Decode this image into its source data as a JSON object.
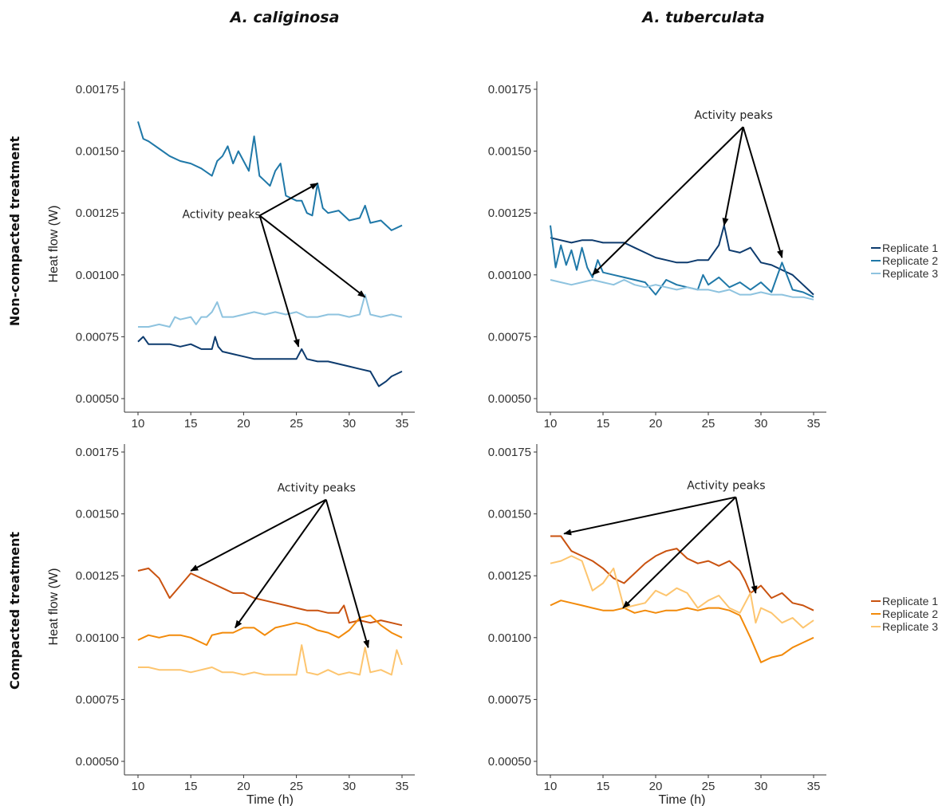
{
  "column_titles": [
    "A. caliginosa",
    "A. tuberculata"
  ],
  "row_titles": [
    "Non-compacted treatment",
    "Compacted treatment"
  ],
  "legends": [
    {
      "entries": [
        "Replicate 1",
        "Replicate 2",
        "Replicate 3"
      ],
      "colors": [
        "#0d3b6e",
        "#1f78a8",
        "#8ec3df"
      ],
      "placement": "right"
    },
    {
      "entries": [
        "Replicate 1",
        "Replicate 2",
        "Replicate 3"
      ],
      "colors": [
        "#c9520f",
        "#f28a0a",
        "#fdc56f"
      ],
      "placement": "right"
    }
  ],
  "chart_data": [
    {
      "type": "line",
      "title": "",
      "xlabel": "",
      "ylabel": "Heat flow (W)",
      "xlim": [
        10,
        35
      ],
      "ylim": [
        0.0005,
        0.00175
      ],
      "xticks": [
        "10",
        "15",
        "20",
        "25",
        "30",
        "35"
      ],
      "yticks": [
        "0.00050",
        "0.00075",
        "0.00100",
        "0.00125",
        "0.00150",
        "0.00175"
      ],
      "grid": false,
      "series": [
        {
          "name": "Replicate 1",
          "color": "#0d3b6e",
          "x": [
            10,
            10.5,
            11,
            12,
            13,
            14,
            15,
            16,
            17,
            17.3,
            17.6,
            18,
            19,
            20,
            21,
            22,
            23,
            24,
            25,
            25.5,
            26,
            27,
            28,
            29,
            30,
            31,
            32,
            32.8,
            33.5,
            34,
            35
          ],
          "y": [
            0.00073,
            0.00075,
            0.00072,
            0.00072,
            0.00072,
            0.00071,
            0.00072,
            0.0007,
            0.0007,
            0.00075,
            0.00071,
            0.00069,
            0.00068,
            0.00067,
            0.00066,
            0.00066,
            0.00066,
            0.00066,
            0.00066,
            0.0007,
            0.00066,
            0.00065,
            0.00065,
            0.00064,
            0.00063,
            0.00062,
            0.00061,
            0.00055,
            0.00057,
            0.00059,
            0.00061
          ]
        },
        {
          "name": "Replicate 2",
          "color": "#1f78a8",
          "x": [
            10,
            10.5,
            11,
            12,
            13,
            14,
            15,
            16,
            17,
            17.5,
            18,
            18.5,
            19,
            19.5,
            20,
            20.5,
            21,
            21.5,
            22,
            22.5,
            23,
            23.5,
            24,
            24.5,
            25,
            25.5,
            26,
            26.5,
            27,
            27.5,
            28,
            29,
            30,
            31,
            31.5,
            32,
            33,
            34,
            35
          ],
          "y": [
            0.00162,
            0.00155,
            0.00154,
            0.00151,
            0.00148,
            0.00146,
            0.00145,
            0.00143,
            0.0014,
            0.00146,
            0.00148,
            0.00152,
            0.00145,
            0.0015,
            0.00146,
            0.00142,
            0.00156,
            0.0014,
            0.00138,
            0.00136,
            0.00142,
            0.00145,
            0.00132,
            0.00131,
            0.0013,
            0.0013,
            0.00125,
            0.00124,
            0.00137,
            0.00127,
            0.00125,
            0.00126,
            0.00122,
            0.00123,
            0.00128,
            0.00121,
            0.00122,
            0.00118,
            0.0012
          ]
        },
        {
          "name": "Replicate 3",
          "color": "#8ec3df",
          "x": [
            10,
            11,
            12,
            13,
            13.5,
            14,
            15,
            15.5,
            16,
            16.5,
            17,
            17.5,
            18,
            19,
            20,
            21,
            22,
            23,
            24,
            25,
            26,
            27,
            28,
            29,
            30,
            31,
            31.5,
            32,
            33,
            34,
            35
          ],
          "y": [
            0.00079,
            0.00079,
            0.0008,
            0.00079,
            0.00083,
            0.00082,
            0.00083,
            0.0008,
            0.00083,
            0.00083,
            0.00085,
            0.00089,
            0.00083,
            0.00083,
            0.00084,
            0.00085,
            0.00084,
            0.00085,
            0.00084,
            0.00085,
            0.00083,
            0.00083,
            0.00084,
            0.00084,
            0.00083,
            0.00084,
            0.00092,
            0.00084,
            0.00083,
            0.00084,
            0.00083
          ]
        }
      ],
      "annotations": [
        {
          "text": "Activity peaks",
          "x": 17.9,
          "y": 0.00123,
          "arrows": [
            [
              27.0,
              0.00137
            ],
            [
              31.5,
              0.00091
            ],
            [
              25.2,
              0.00071
            ]
          ]
        }
      ]
    },
    {
      "type": "line",
      "title": "",
      "xlabel": "",
      "ylabel": "",
      "xlim": [
        10,
        35
      ],
      "ylim": [
        0.0005,
        0.00175
      ],
      "xticks": [
        "10",
        "15",
        "20",
        "25",
        "30",
        "35"
      ],
      "yticks": [
        "0.00050",
        "0.00075",
        "0.00100",
        "0.00125",
        "0.00150",
        "0.00175"
      ],
      "grid": false,
      "series": [
        {
          "name": "Replicate 1",
          "color": "#0d3b6e",
          "x": [
            10,
            11,
            12,
            13,
            14,
            15,
            16,
            17,
            18,
            19,
            20,
            21,
            22,
            23,
            24,
            25,
            26,
            26.5,
            27,
            28,
            29,
            30,
            31,
            32,
            33,
            34,
            35
          ],
          "y": [
            0.00115,
            0.00114,
            0.00113,
            0.00114,
            0.00114,
            0.00113,
            0.00113,
            0.00113,
            0.00111,
            0.00109,
            0.00107,
            0.00106,
            0.00105,
            0.00105,
            0.00106,
            0.00106,
            0.00112,
            0.0012,
            0.0011,
            0.00109,
            0.00111,
            0.00105,
            0.00104,
            0.00102,
            0.001,
            0.00096,
            0.00092
          ]
        },
        {
          "name": "Replicate 2",
          "color": "#1f78a8",
          "x": [
            10,
            10.5,
            11,
            11.5,
            12,
            12.5,
            13,
            13.5,
            14,
            14.5,
            15,
            16,
            17,
            18,
            19,
            20,
            21,
            22,
            23,
            24,
            24.5,
            25,
            26,
            27,
            28,
            29,
            30,
            31,
            32,
            33,
            34,
            35
          ],
          "y": [
            0.0012,
            0.00103,
            0.00112,
            0.00104,
            0.0011,
            0.00102,
            0.00111,
            0.00103,
            0.00099,
            0.00106,
            0.00101,
            0.001,
            0.00099,
            0.00098,
            0.00097,
            0.00092,
            0.00098,
            0.00096,
            0.00095,
            0.00094,
            0.001,
            0.00096,
            0.00099,
            0.00095,
            0.00097,
            0.00094,
            0.00097,
            0.00093,
            0.00105,
            0.00094,
            0.00093,
            0.00091
          ]
        },
        {
          "name": "Replicate 3",
          "color": "#8ec3df",
          "x": [
            10,
            11,
            12,
            13,
            14,
            15,
            16,
            17,
            18,
            19,
            20,
            21,
            22,
            23,
            24,
            25,
            26,
            27,
            28,
            29,
            30,
            31,
            32,
            33,
            34,
            35
          ],
          "y": [
            0.00098,
            0.00097,
            0.00096,
            0.00097,
            0.00098,
            0.00097,
            0.00096,
            0.00098,
            0.00096,
            0.00095,
            0.00096,
            0.00095,
            0.00094,
            0.00095,
            0.00094,
            0.00094,
            0.00093,
            0.00094,
            0.00092,
            0.00092,
            0.00093,
            0.00092,
            0.00092,
            0.00091,
            0.00091,
            0.0009
          ]
        }
      ],
      "annotations": [
        {
          "text": "Activity peaks",
          "x": 27.4,
          "y": 0.00163,
          "arrows": [
            [
              14.0,
              0.001
            ],
            [
              26.5,
              0.0012
            ],
            [
              32.0,
              0.00107
            ]
          ]
        }
      ]
    },
    {
      "type": "line",
      "title": "",
      "xlabel": "Time (h)",
      "ylabel": "Heat flow (W)",
      "xlim": [
        10,
        35
      ],
      "ylim": [
        0.0005,
        0.00175
      ],
      "xticks": [
        "10",
        "15",
        "20",
        "25",
        "30",
        "35"
      ],
      "yticks": [
        "0.00050",
        "0.00075",
        "0.00100",
        "0.00125",
        "0.00150",
        "0.00175"
      ],
      "grid": false,
      "series": [
        {
          "name": "Replicate 1",
          "color": "#c9520f",
          "x": [
            10,
            11,
            12,
            12.5,
            13,
            14,
            15,
            16,
            17,
            18,
            19,
            20,
            21,
            22,
            23,
            24,
            25,
            26,
            27,
            28,
            29,
            29.5,
            30,
            31,
            32,
            33,
            34,
            35
          ],
          "y": [
            0.00127,
            0.00128,
            0.00124,
            0.0012,
            0.00116,
            0.00121,
            0.00126,
            0.00124,
            0.00122,
            0.0012,
            0.00118,
            0.00118,
            0.00116,
            0.00115,
            0.00114,
            0.00113,
            0.00112,
            0.00111,
            0.00111,
            0.0011,
            0.0011,
            0.00113,
            0.00106,
            0.00107,
            0.00106,
            0.00107,
            0.00106,
            0.00105
          ]
        },
        {
          "name": "Replicate 2",
          "color": "#f28a0a",
          "x": [
            10,
            11,
            12,
            13,
            14,
            15,
            16,
            16.5,
            17,
            18,
            19,
            20,
            21,
            22,
            23,
            24,
            25,
            26,
            27,
            28,
            29,
            30,
            31,
            32,
            33,
            34,
            35
          ],
          "y": [
            0.00099,
            0.00101,
            0.001,
            0.00101,
            0.00101,
            0.001,
            0.00098,
            0.00097,
            0.00101,
            0.00102,
            0.00102,
            0.00104,
            0.00104,
            0.00101,
            0.00104,
            0.00105,
            0.00106,
            0.00105,
            0.00103,
            0.00102,
            0.001,
            0.00103,
            0.00108,
            0.00109,
            0.00105,
            0.00102,
            0.001
          ]
        },
        {
          "name": "Replicate 3",
          "color": "#fdc56f",
          "x": [
            10,
            11,
            12,
            13,
            14,
            15,
            16,
            17,
            18,
            19,
            20,
            21,
            22,
            23,
            24,
            25,
            25.5,
            26,
            27,
            28,
            29,
            30,
            31,
            31.5,
            32,
            33,
            34,
            34.5,
            35
          ],
          "y": [
            0.00088,
            0.00088,
            0.00087,
            0.00087,
            0.00087,
            0.00086,
            0.00087,
            0.00088,
            0.00086,
            0.00086,
            0.00085,
            0.00086,
            0.00085,
            0.00085,
            0.00085,
            0.00085,
            0.00097,
            0.00086,
            0.00085,
            0.00087,
            0.00085,
            0.00086,
            0.00085,
            0.00096,
            0.00086,
            0.00087,
            0.00085,
            0.00095,
            0.00089
          ]
        }
      ],
      "annotations": [
        {
          "text": "Activity peaks",
          "x": 26.9,
          "y": 0.00159,
          "arrows": [
            [
              15.0,
              0.00127
            ],
            [
              19.2,
              0.00104
            ],
            [
              31.8,
              0.00096
            ]
          ]
        }
      ]
    },
    {
      "type": "line",
      "title": "",
      "xlabel": "Time (h)",
      "ylabel": "",
      "xlim": [
        10,
        35
      ],
      "ylim": [
        0.0005,
        0.00175
      ],
      "xticks": [
        "10",
        "15",
        "20",
        "25",
        "30",
        "35"
      ],
      "yticks": [
        "0.00050",
        "0.00075",
        "0.00100",
        "0.00125",
        "0.00150",
        "0.00175"
      ],
      "grid": false,
      "series": [
        {
          "name": "Replicate 1",
          "color": "#c9520f",
          "x": [
            10,
            11,
            12,
            13,
            14,
            15,
            16,
            17,
            18,
            19,
            20,
            21,
            22,
            23,
            24,
            25,
            26,
            27,
            28,
            28.5,
            29,
            30,
            31,
            32,
            33,
            34,
            35
          ],
          "y": [
            0.00141,
            0.00141,
            0.00135,
            0.00133,
            0.00131,
            0.00128,
            0.00124,
            0.00122,
            0.00126,
            0.0013,
            0.00133,
            0.00135,
            0.00136,
            0.00132,
            0.0013,
            0.00131,
            0.00129,
            0.00131,
            0.00127,
            0.00123,
            0.00118,
            0.00121,
            0.00116,
            0.00118,
            0.00114,
            0.00113,
            0.00111
          ]
        },
        {
          "name": "Replicate 2",
          "color": "#f28a0a",
          "x": [
            10,
            11,
            12,
            13,
            14,
            15,
            16,
            17,
            18,
            19,
            20,
            21,
            22,
            23,
            24,
            25,
            26,
            27,
            28,
            29,
            29.5,
            30,
            31,
            32,
            33,
            34,
            35
          ],
          "y": [
            0.00113,
            0.00115,
            0.00114,
            0.00113,
            0.00112,
            0.00111,
            0.00111,
            0.00112,
            0.0011,
            0.00111,
            0.0011,
            0.00111,
            0.00111,
            0.00112,
            0.00111,
            0.00112,
            0.00112,
            0.00111,
            0.00109,
            0.001,
            0.00095,
            0.0009,
            0.00092,
            0.00093,
            0.00096,
            0.00098,
            0.001
          ]
        },
        {
          "name": "Replicate 3",
          "color": "#fdc56f",
          "x": [
            10,
            11,
            12,
            13,
            14,
            15,
            16,
            17,
            18,
            19,
            20,
            21,
            22,
            23,
            24,
            25,
            26,
            27,
            28,
            29,
            29.5,
            30,
            31,
            32,
            33,
            34,
            35
          ],
          "y": [
            0.0013,
            0.00131,
            0.00133,
            0.00131,
            0.00119,
            0.00122,
            0.00128,
            0.00112,
            0.00113,
            0.00114,
            0.00119,
            0.00117,
            0.0012,
            0.00118,
            0.00112,
            0.00115,
            0.00117,
            0.00112,
            0.0011,
            0.00118,
            0.00106,
            0.00112,
            0.0011,
            0.00106,
            0.00108,
            0.00104,
            0.00107
          ]
        }
      ],
      "annotations": [
        {
          "text": "Activity peaks",
          "x": 26.7,
          "y": 0.0016,
          "arrows": [
            [
              11.3,
              0.00142
            ],
            [
              16.9,
              0.00112
            ],
            [
              29.5,
              0.00118
            ]
          ]
        }
      ]
    }
  ]
}
